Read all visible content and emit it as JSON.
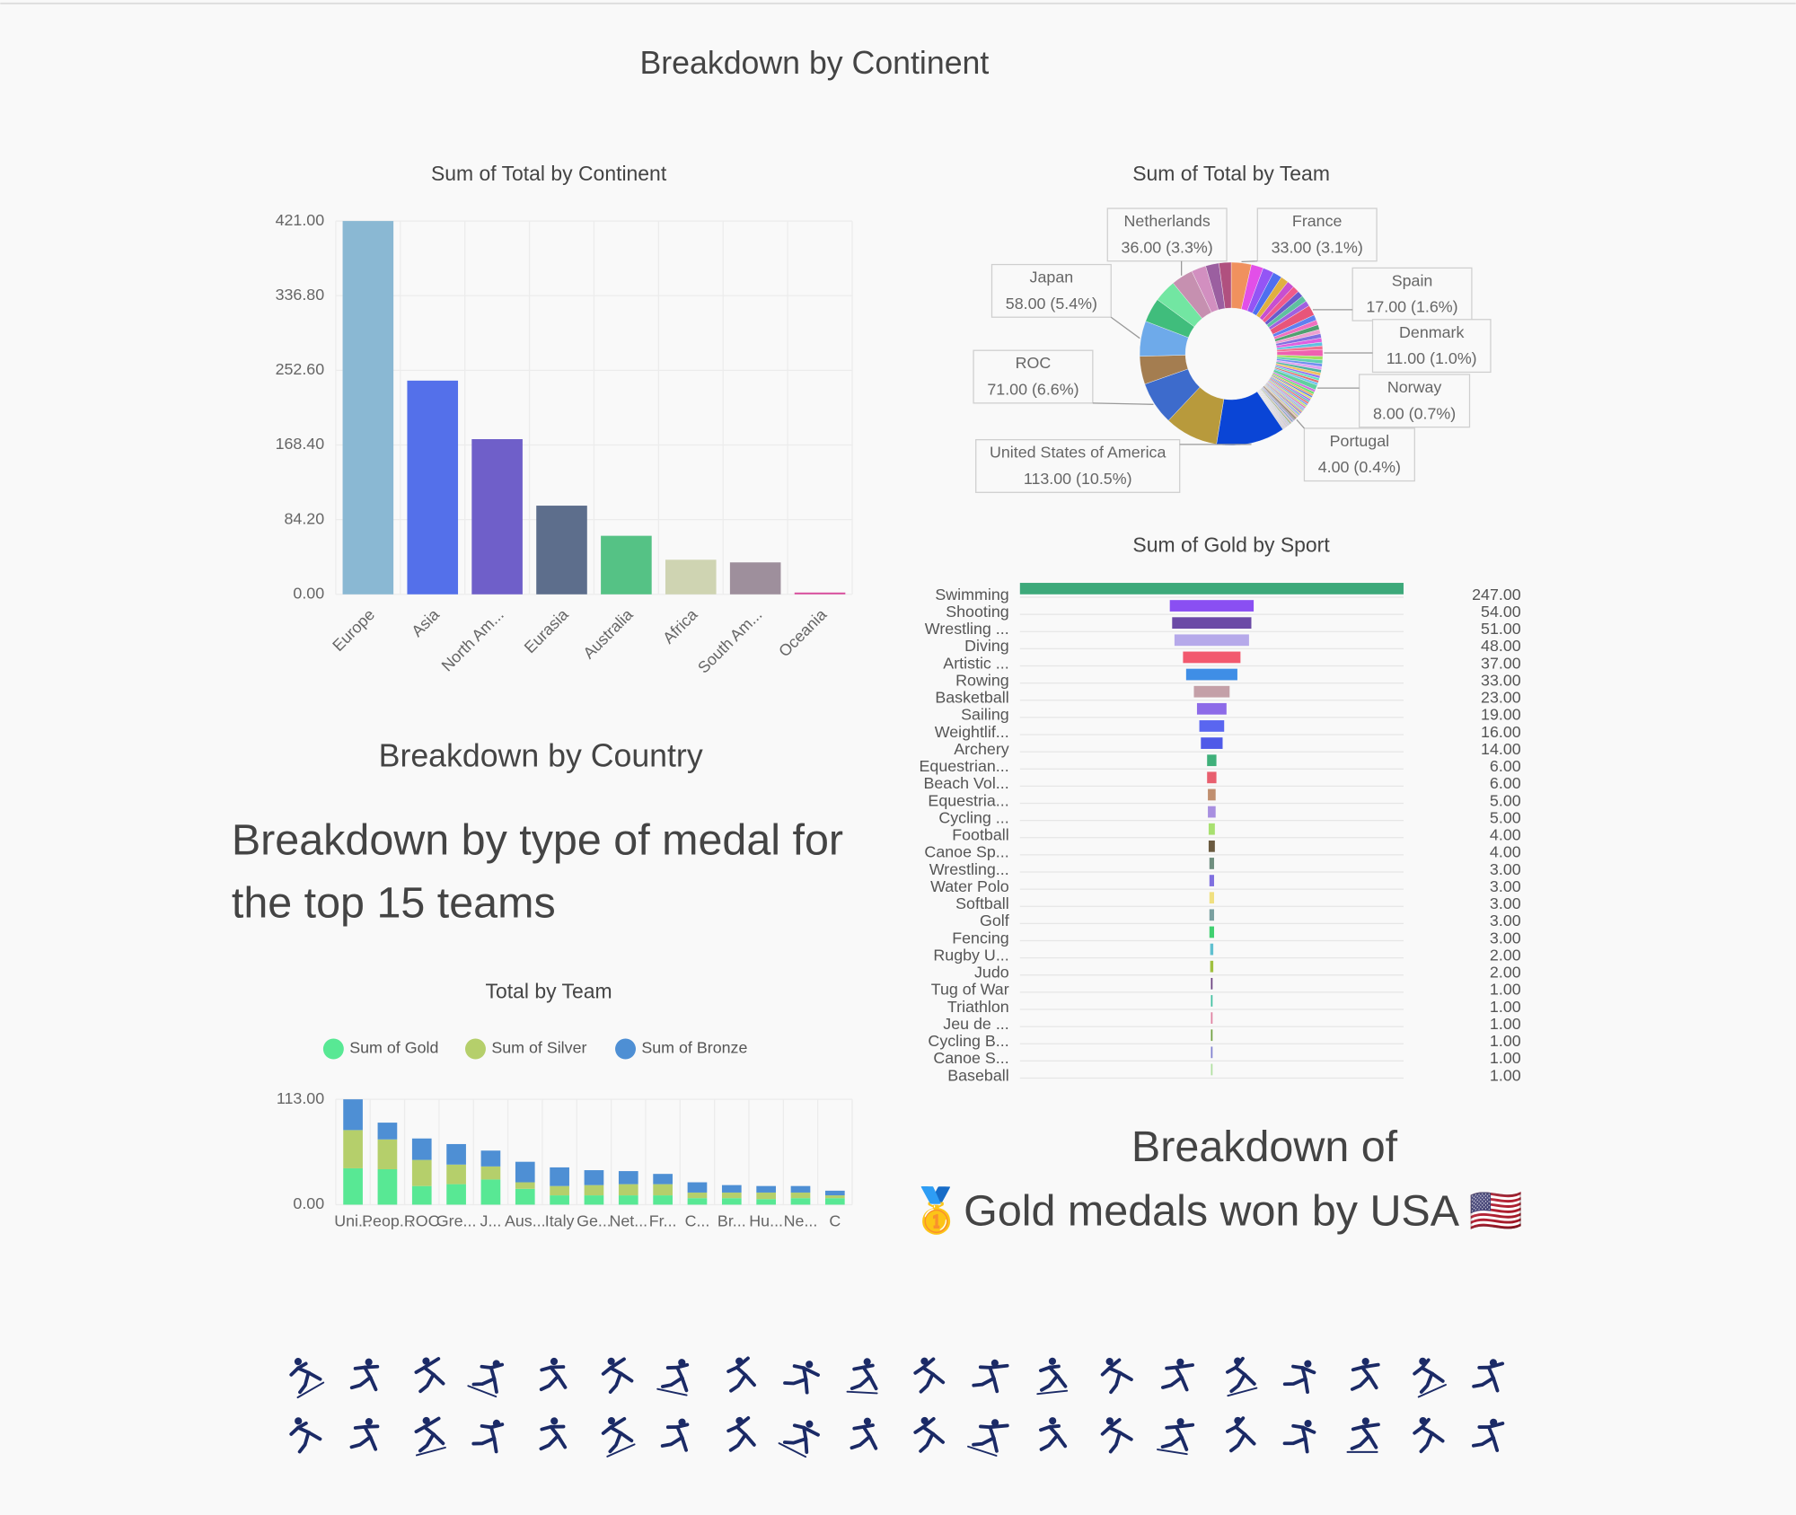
{
  "headings": {
    "continent": "Breakdown by Continent",
    "country": "Breakdown by Country",
    "medal_type": [
      "Breakdown by type of medal for",
      "the top 15 teams"
    ],
    "usa": [
      "Breakdown of",
      "🥇Gold medals won by USA 🇺🇸"
    ]
  },
  "chart_data": [
    {
      "type": "bar",
      "title": "Sum of Total by Continent",
      "categories": [
        "Europe",
        "Asia",
        "North Am...",
        "Eurasia",
        "Australia",
        "Africa",
        "South Am...",
        "Oceania"
      ],
      "values": [
        421,
        241,
        175,
        100,
        66,
        39,
        36,
        2
      ],
      "colors": [
        "#8ab8d3",
        "#5470ea",
        "#6f5fc9",
        "#5d6e8c",
        "#55c285",
        "#cfd4b2",
        "#9e8f9c",
        "#d94f9e"
      ],
      "ylim": [
        0,
        421
      ],
      "yticks": [
        {
          "value": 0,
          "label": "0.00"
        },
        {
          "value": 84.2,
          "label": "84.20"
        },
        {
          "value": 168.4,
          "label": "168.40"
        },
        {
          "value": 252.6,
          "label": "252.60"
        },
        {
          "value": 336.8,
          "label": "336.80"
        },
        {
          "value": 421,
          "label": "421.00"
        }
      ],
      "grid": true
    },
    {
      "type": "pie",
      "donut": true,
      "title": "Sum of Total by Team",
      "categories": [
        "France",
        null,
        null,
        null,
        null,
        null,
        null,
        null,
        null,
        null,
        "Spain",
        null,
        null,
        null,
        null,
        null,
        null,
        null,
        null,
        "Denmark",
        null,
        null,
        null,
        null,
        null,
        null,
        null,
        null,
        null,
        null,
        "Norway",
        null,
        null,
        null,
        null,
        null,
        null,
        null,
        null,
        null,
        null,
        null,
        null,
        null,
        null,
        null,
        null,
        null,
        null,
        null,
        null,
        null,
        "Portugal",
        null,
        null,
        null,
        null,
        null,
        null,
        null,
        null,
        null,
        null,
        null,
        null,
        null,
        null,
        null,
        null,
        null,
        null,
        null,
        null,
        "United States of America",
        null,
        "ROC",
        null,
        "Japan",
        null,
        null,
        "Netherlands",
        null,
        null,
        null
      ],
      "values": [
        33,
        20,
        18,
        15,
        13,
        12,
        11,
        10,
        10,
        9,
        17,
        9,
        8,
        8,
        7,
        7,
        7,
        6,
        6,
        11,
        6,
        6,
        5,
        5,
        5,
        5,
        4,
        4,
        4,
        4,
        8,
        4,
        4,
        3,
        3,
        3,
        3,
        3,
        3,
        3,
        3,
        3,
        2,
        2,
        2,
        2,
        2,
        2,
        2,
        2,
        2,
        2,
        4,
        2,
        2,
        2,
        2,
        2,
        1,
        1,
        1,
        1,
        1,
        1,
        1,
        1,
        1,
        1,
        1,
        1,
        1,
        1,
        1,
        113,
        88,
        71,
        46,
        58,
        40,
        37,
        36,
        24,
        22,
        20
      ],
      "value_labels": [
        "33.00 (3.1%)",
        null,
        null,
        null,
        null,
        null,
        null,
        null,
        null,
        null,
        "17.00 (1.6%)",
        null,
        null,
        null,
        null,
        null,
        null,
        null,
        null,
        "11.00 (1.0%)",
        null,
        null,
        null,
        null,
        null,
        null,
        null,
        null,
        null,
        null,
        "8.00 (0.7%)",
        null,
        null,
        null,
        null,
        null,
        null,
        null,
        null,
        null,
        null,
        null,
        null,
        null,
        null,
        null,
        null,
        null,
        null,
        null,
        null,
        null,
        "4.00 (0.4%)",
        null,
        null,
        null,
        null,
        null,
        null,
        null,
        null,
        null,
        null,
        null,
        null,
        null,
        null,
        null,
        null,
        null,
        null,
        null,
        null,
        "113.00 (10.5%)",
        null,
        "71.00 (6.6%)",
        null,
        "58.00 (5.4%)",
        null,
        null,
        "36.00 (3.3%)",
        null,
        null,
        null
      ],
      "colors": [
        "#f0915e",
        "#e24fe8",
        "#9455f5",
        "#4f6ff0",
        "#e0b040",
        "#c84fd0",
        "#f05a8a",
        "#6a5acd",
        "#5fc0a0",
        "#a060e0",
        "#e8557a",
        "#6080f0",
        "#f070c0",
        "#50a070",
        "#f0a0d0",
        "#8070e0",
        "#e060e0",
        "#60c0e0",
        "#f07090",
        "#f060b0",
        "#a0e060",
        "#60d0b0",
        "#7090f0",
        "#e0a0f0",
        "#50b0a0",
        "#f0c060",
        "#9070f0",
        "#60e0c0",
        "#e07070",
        "#70c0f0",
        "#60d0a0",
        "#d070e0",
        "#70e070",
        "#f0a060",
        "#6080e0",
        "#e0e060",
        "#a070f0",
        "#60c0c0",
        "#f07070",
        "#80a0f0",
        "#c0e070",
        "#e080c0",
        "#70d0e0",
        "#b080e0",
        "#90e0a0",
        "#f09070",
        "#7070e0",
        "#e0c080",
        "#60b0e0",
        "#d0a0f0",
        "#a0d070",
        "#f0b0b0",
        "#a09080",
        "#8090a0",
        "#c0a0e0",
        "#60a0b0",
        "#e0b0d0",
        "#90b060",
        "#7080c0",
        "#b090d0",
        "#60c090",
        "#d09090",
        "#8070b0",
        "#a0c0e0",
        "#c080a0",
        "#70b0a0",
        "#e0a080",
        "#9090e0",
        "#b0d0a0",
        "#d070a0",
        "#80c0d0",
        "#a080c0",
        "#c0c080",
        "#0a45d6",
        "#b89a3c",
        "#3d6bcc",
        "#a47d50",
        "#6eaaea",
        "#40bd7c",
        "#72e6a2",
        "#c690b0",
        "#d28fc0",
        "#9b5fa0",
        "#b0507f"
      ]
    },
    {
      "type": "funnel",
      "title": "Sum of Gold by Sport",
      "categories": [
        "Swimming",
        "Shooting",
        "Wrestling ...",
        "Diving",
        "Artistic ...",
        "Rowing",
        "Basketball",
        "Sailing",
        "Weightlif...",
        "Archery",
        "Equestrian...",
        "Beach Vol...",
        "Equestria...",
        "Cycling ...",
        "Football",
        "Canoe Sp...",
        "Wrestling...",
        "Water Polo",
        "Softball",
        "Golf",
        "Fencing",
        "Rugby U...",
        "Judo",
        "Tug of War",
        "Triathlon",
        "Jeu de ...",
        "Cycling B...",
        "Canoe S...",
        "Baseball"
      ],
      "values": [
        247,
        54,
        51,
        48,
        37,
        33,
        23,
        19,
        16,
        14,
        6,
        6,
        5,
        5,
        4,
        4,
        3,
        3,
        3,
        3,
        3,
        2,
        2,
        1,
        1,
        1,
        1,
        1,
        1
      ],
      "value_labels": [
        "247.00",
        "54.00",
        "51.00",
        "48.00",
        "37.00",
        "33.00",
        "23.00",
        "19.00",
        "16.00",
        "14.00",
        "6.00",
        "6.00",
        "5.00",
        "5.00",
        "4.00",
        "4.00",
        "3.00",
        "3.00",
        "3.00",
        "3.00",
        "3.00",
        "2.00",
        "2.00",
        "1.00",
        "1.00",
        "1.00",
        "1.00",
        "1.00",
        "1.00"
      ],
      "colors": [
        "#3da97a",
        "#8a4ff2",
        "#6b4aa6",
        "#b6a9ea",
        "#f2596e",
        "#3f8ee6",
        "#c4a0a8",
        "#8d6be8",
        "#5a66f0",
        "#4f5ae8",
        "#3fb07a",
        "#e85f6f",
        "#c08f70",
        "#a88fe0",
        "#a8e070",
        "#6a5a40",
        "#6f8f7f",
        "#8070e0",
        "#f0e080",
        "#7aa0a0",
        "#40d070",
        "#60c0d0",
        "#a0c040",
        "#6a4080",
        "#40c0a0",
        "#e080a0",
        "#70a040",
        "#8080d0",
        "#b0e0a0"
      ]
    },
    {
      "type": "stacked_bar",
      "title": "Total by Team",
      "categories": [
        "Uni...",
        "Peop...",
        "ROC",
        "Gre...",
        "J...",
        "Aus...",
        "Italy",
        "Ge...",
        "Net...",
        "Fr...",
        "C...",
        "Br...",
        "Hu...",
        "Ne...",
        "C"
      ],
      "series": [
        {
          "name": "Sum of Gold",
          "color": "#58e894",
          "values": [
            39,
            38,
            20,
            22,
            27,
            17,
            10,
            10,
            10,
            10,
            7,
            7,
            6,
            7,
            7
          ]
        },
        {
          "name": "Sum of Silver",
          "color": "#b5cf6b",
          "values": [
            41,
            32,
            28,
            21,
            14,
            7,
            10,
            11,
            12,
            12,
            6,
            6,
            7,
            6,
            3
          ]
        },
        {
          "name": "Sum of Bronze",
          "color": "#4e8fd4",
          "values": [
            33,
            18,
            23,
            22,
            17,
            22,
            20,
            16,
            14,
            11,
            11,
            8,
            7,
            7,
            5
          ]
        }
      ],
      "ylim": [
        0,
        113
      ],
      "yticks": [
        {
          "value": 0,
          "label": "0.00"
        },
        {
          "value": 113,
          "label": "113.00"
        }
      ],
      "grid": true
    }
  ]
}
